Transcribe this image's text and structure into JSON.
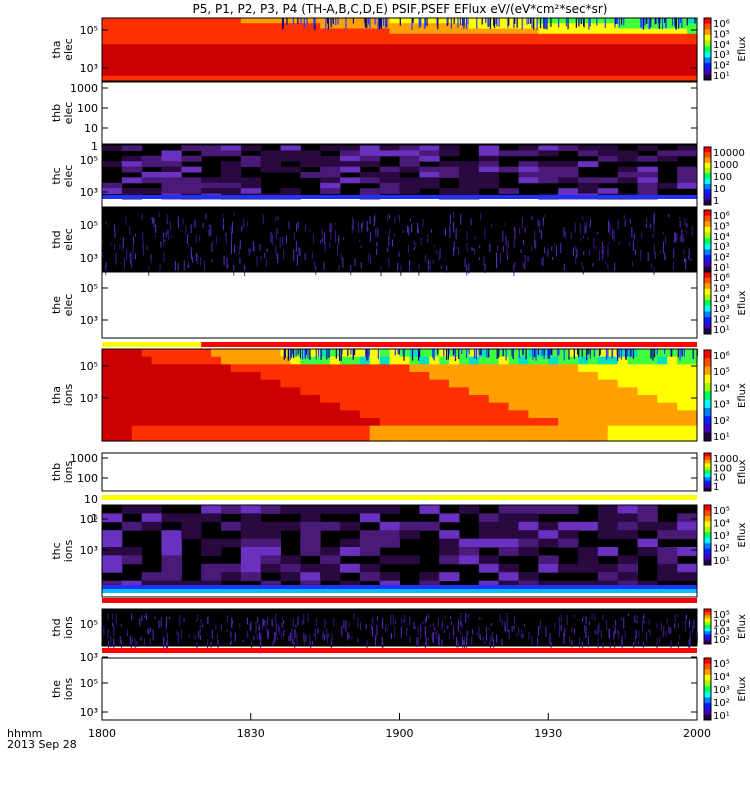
{
  "title": "P5, P1, P2, P3, P4 (TH-A,B,C,D,E) PSIF,PSEF EFlux eV/(eV*cm²*sec*sr)",
  "time_axis": {
    "label_line1": "hhmm",
    "label_line2": "2013 Sep 28",
    "ticks": [
      "1800",
      "1830",
      "1900",
      "1930",
      "2000"
    ]
  },
  "colors": {
    "spectrogram_palette": [
      "#000000",
      "#300060",
      "#4a1aa8",
      "#2030ff",
      "#00b0ff",
      "#00e0c0",
      "#40ff40",
      "#ffff00",
      "#ffa000",
      "#ff3000",
      "#cc0000"
    ],
    "status_yellow": "#ffff00",
    "status_red": "#ff0000",
    "plot_background": "#ffffff"
  },
  "chart_data": [
    {
      "type": "heatmap",
      "probe_label": [
        "tha",
        "elec"
      ],
      "y_ticks": [
        "10⁵",
        "10³"
      ],
      "yscale": "log",
      "colorbar": {
        "ticks": [
          "10⁶",
          "10⁵",
          "10⁴",
          "10³",
          "10²",
          "10¹"
        ],
        "label": "Eflux"
      },
      "description_of_values": "high flux (red/orange) across all energies, green-to-blue at top energies from ~1845 on"
    },
    {
      "type": "heatmap",
      "probe_label": [
        "thb",
        "elec"
      ],
      "y_ticks": [
        "1000",
        "100",
        "10",
        "1"
      ],
      "yscale": "log",
      "colorbar": null
    },
    {
      "type": "heatmap",
      "probe_label": [
        "thc",
        "elec"
      ],
      "y_ticks": [
        "10⁵",
        "10³"
      ],
      "yscale": "log",
      "colorbar": {
        "ticks": [
          "10000",
          "1000",
          "100",
          "10",
          "1"
        ],
        "label": ""
      }
    },
    {
      "type": "heatmap",
      "probe_label": [
        "thd",
        "elec"
      ],
      "y_ticks": [
        "10⁵",
        "10³"
      ],
      "yscale": "log",
      "colorbar": {
        "ticks": [
          "10⁶",
          "10⁵",
          "10⁴",
          "10³",
          "10²",
          "10¹"
        ],
        "label": ""
      }
    },
    {
      "type": "heatmap",
      "probe_label": [
        "the",
        "elec"
      ],
      "y_ticks": [
        "10⁵",
        "10³"
      ],
      "yscale": "log",
      "colorbar": {
        "ticks": [
          "10⁶",
          "10⁵",
          "10⁴",
          "10³",
          "10²",
          "10¹"
        ],
        "label": "Eflux"
      }
    },
    {
      "type": "heatmap",
      "probe_label": [
        "tha",
        "ions"
      ],
      "y_ticks": [
        "10⁵",
        "10³"
      ],
      "yscale": "log",
      "colorbar": {
        "ticks": [
          "10⁶",
          "10⁵",
          "10⁴",
          "10³",
          "10²",
          "10¹"
        ],
        "label": "Eflux"
      }
    },
    {
      "type": "heatmap",
      "probe_label": [
        "thb",
        "ions"
      ],
      "y_ticks": [
        "1000",
        "100",
        "10",
        "1"
      ],
      "yscale": "log",
      "colorbar": {
        "ticks": [
          "1000",
          "100",
          "10",
          "1"
        ],
        "label": "Eflux"
      }
    },
    {
      "type": "heatmap",
      "probe_label": [
        "thc",
        "ions"
      ],
      "y_ticks": [
        "10⁵",
        "10³"
      ],
      "yscale": "log",
      "colorbar": {
        "ticks": [
          "10⁵",
          "10⁴",
          "10³",
          "10²",
          "10¹"
        ],
        "label": "Eflux"
      }
    },
    {
      "type": "heatmap",
      "probe_label": [
        "thd",
        "ions"
      ],
      "y_ticks": [
        "10⁵",
        "10³"
      ],
      "yscale": "log",
      "colorbar": {
        "ticks": [
          "10⁵",
          "10⁴",
          "10³",
          "10²"
        ],
        "label": "Eflux"
      }
    },
    {
      "type": "heatmap",
      "probe_label": [
        "the",
        "ions"
      ],
      "y_ticks": [
        "10⁵",
        "10³"
      ],
      "yscale": "log",
      "colorbar": {
        "ticks": [
          "10⁵",
          "10⁴",
          "10³",
          "10²",
          "10¹"
        ],
        "label": "Eflux"
      }
    }
  ],
  "status_bars": [
    {
      "after_panel": 4,
      "segments": [
        {
          "from": "1800",
          "to": "1820",
          "color": "yellow"
        },
        {
          "from": "1820",
          "to": "2000",
          "color": "red"
        }
      ]
    },
    {
      "after_panel": 6,
      "segments": [
        {
          "from": "1800",
          "to": "2000",
          "color": "yellow"
        }
      ]
    },
    {
      "after_panel": 7,
      "segments": [
        {
          "from": "1800",
          "to": "2000",
          "color": "red"
        }
      ]
    },
    {
      "after_panel": 8,
      "segments": [
        {
          "from": "1800",
          "to": "2000",
          "color": "red"
        }
      ]
    }
  ]
}
